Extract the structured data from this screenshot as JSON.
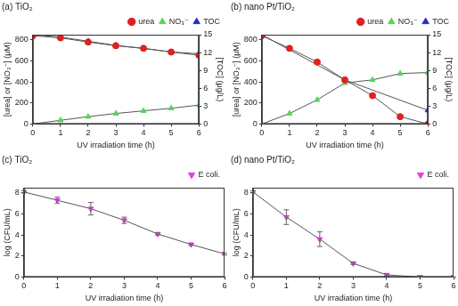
{
  "chart_data": [
    {
      "type": "line",
      "title": "(a) TiO₂",
      "x_label": "UV irradiation time (h)",
      "y_label": "[urea] or [NO₃⁻] (μM)",
      "y2_label": "[TOC] (μg/L)",
      "x": [
        0,
        1,
        2,
        3,
        4,
        5,
        6
      ],
      "xlim": [
        0,
        6
      ],
      "xticks": [
        0,
        1,
        2,
        3,
        4,
        5,
        6
      ],
      "ylim": [
        0,
        850
      ],
      "yticks": [
        0,
        200,
        400,
        600,
        800
      ],
      "y2lim": [
        0,
        15
      ],
      "y2ticks": [
        0,
        3,
        6,
        9,
        12,
        15
      ],
      "grid": false,
      "legend": "top",
      "series": [
        {
          "name": "urea",
          "color": "#e02020",
          "marker": "circle",
          "values": [
            840,
            820,
            780,
            745,
            720,
            685,
            655
          ]
        },
        {
          "name": "NO₃⁻",
          "color": "#5ad35a",
          "marker": "triangle",
          "values": [
            0,
            35,
            70,
            100,
            125,
            150,
            180
          ]
        },
        {
          "name": "TOC",
          "color": "#2030c0",
          "marker": "triangle",
          "axis": "y2",
          "values": [
            15.0,
            14.6,
            13.9,
            13.2,
            12.7,
            12.1,
            11.8
          ]
        }
      ]
    },
    {
      "type": "line",
      "title": "(b) nano Pt/TiO₂",
      "x_label": "UV irradiation time (h)",
      "y_label": "[urea] or [NO₃⁻] (μM)",
      "y2_label": "[TOC] (μg/L)",
      "x": [
        0,
        1,
        2,
        3,
        4,
        5,
        6
      ],
      "xlim": [
        0,
        6
      ],
      "xticks": [
        0,
        1,
        2,
        3,
        4,
        5,
        6
      ],
      "ylim": [
        0,
        850
      ],
      "yticks": [
        0,
        200,
        400,
        600,
        800
      ],
      "y2lim": [
        0,
        15
      ],
      "y2ticks": [
        0,
        3,
        6,
        9,
        12,
        15
      ],
      "grid": false,
      "legend": "top",
      "series": [
        {
          "name": "urea",
          "color": "#e02020",
          "marker": "circle",
          "values": [
            840,
            720,
            590,
            420,
            270,
            70,
            0
          ]
        },
        {
          "name": "NO₃⁻",
          "color": "#5ad35a",
          "marker": "triangle",
          "values": [
            0,
            100,
            230,
            390,
            420,
            480,
            490
          ]
        },
        {
          "name": "TOC",
          "color": "#2030c0",
          "marker": "triangle",
          "axis": "y2",
          "x": [
            0,
            3,
            6
          ],
          "values": [
            15.0,
            7.4,
            2.3
          ]
        }
      ]
    },
    {
      "type": "line",
      "title": "(c) TiO₂",
      "x_label": "UV irradiation time (h)",
      "y_label": "log (CFU/mL)",
      "x": [
        0,
        1,
        2,
        3,
        4,
        5,
        6
      ],
      "xlim": [
        0,
        6
      ],
      "xticks": [
        0,
        1,
        2,
        3,
        4,
        5,
        6
      ],
      "ylim": [
        0,
        8.5
      ],
      "yticks": [
        0,
        2,
        4,
        6,
        8
      ],
      "grid": false,
      "legend": "top",
      "series": [
        {
          "name": "E coli.",
          "color": "#e040e0",
          "marker": "triangle_down",
          "values": [
            8.1,
            7.3,
            6.5,
            5.4,
            4.1,
            3.1,
            2.2
          ],
          "errors": [
            0.1,
            0.3,
            0.6,
            0.3,
            0.1,
            0.1,
            0.1
          ]
        }
      ]
    },
    {
      "type": "line",
      "title": "(d) nano Pt/TiO₂",
      "x_label": "UV irradiation time (h)",
      "y_label": "log (CFU/mL)",
      "x": [
        0,
        1,
        2,
        3,
        4,
        5,
        6
      ],
      "xlim": [
        0,
        6
      ],
      "xticks": [
        0,
        1,
        2,
        3,
        4,
        5,
        6
      ],
      "ylim": [
        0,
        8.5
      ],
      "yticks": [
        0,
        2,
        4,
        6,
        8
      ],
      "grid": false,
      "legend": "top",
      "series": [
        {
          "name": "E coli.",
          "color": "#e040e0",
          "marker": "triangle_down",
          "values": [
            8.1,
            5.7,
            3.6,
            1.3,
            0.2,
            0,
            0
          ],
          "errors": [
            0.1,
            0.7,
            0.7,
            0.1,
            0.1,
            0,
            0
          ]
        }
      ]
    }
  ]
}
